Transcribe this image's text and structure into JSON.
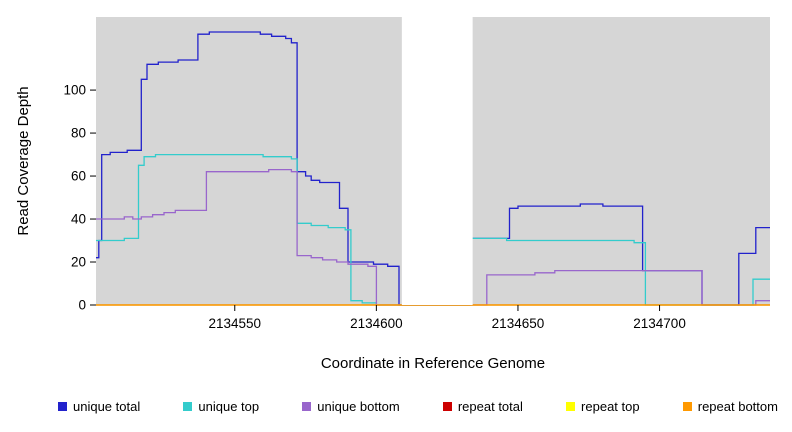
{
  "chart_data": {
    "type": "line",
    "step": "after",
    "title": "",
    "xlabel": "Coordinate in Reference Genome",
    "ylabel": "Read Coverage Depth",
    "xlim": [
      2134501,
      2134739
    ],
    "ylim": [
      0,
      134
    ],
    "xticks": [
      2134550,
      2134600,
      2134650,
      2134700
    ],
    "yticks": [
      0,
      20,
      40,
      60,
      80,
      100
    ],
    "grid": false,
    "legend_position": "bottom",
    "plot_background": "#d6d6d6",
    "gap_region": {
      "x0": 2134609,
      "x1": 2134634,
      "color": "#ffffff"
    },
    "series": [
      {
        "name": "unique total",
        "color": "#2222cc",
        "points": [
          [
            2134501,
            22
          ],
          [
            2134502,
            30
          ],
          [
            2134503,
            70
          ],
          [
            2134506,
            71
          ],
          [
            2134512,
            72
          ],
          [
            2134517,
            105
          ],
          [
            2134519,
            112
          ],
          [
            2134523,
            113
          ],
          [
            2134530,
            114
          ],
          [
            2134537,
            126
          ],
          [
            2134541,
            127
          ],
          [
            2134559,
            126
          ],
          [
            2134563,
            125
          ],
          [
            2134568,
            124
          ],
          [
            2134570,
            122
          ],
          [
            2134572,
            62
          ],
          [
            2134575,
            60
          ],
          [
            2134577,
            58
          ],
          [
            2134580,
            57
          ],
          [
            2134587,
            45
          ],
          [
            2134590,
            20
          ],
          [
            2134599,
            19
          ],
          [
            2134604,
            18
          ],
          [
            2134608,
            0
          ],
          [
            2134633,
            31
          ],
          [
            2134647,
            45
          ],
          [
            2134650,
            46
          ],
          [
            2134672,
            47
          ],
          [
            2134680,
            46
          ],
          [
            2134694,
            16
          ],
          [
            2134715,
            0
          ],
          [
            2134728,
            24
          ],
          [
            2134734,
            36
          ],
          [
            2134739,
            36
          ]
        ]
      },
      {
        "name": "unique top",
        "color": "#33cccc",
        "points": [
          [
            2134501,
            30
          ],
          [
            2134511,
            31
          ],
          [
            2134516,
            65
          ],
          [
            2134518,
            69
          ],
          [
            2134522,
            70
          ],
          [
            2134556,
            70
          ],
          [
            2134560,
            69
          ],
          [
            2134570,
            68
          ],
          [
            2134572,
            38
          ],
          [
            2134577,
            37
          ],
          [
            2134583,
            36
          ],
          [
            2134589,
            35
          ],
          [
            2134591,
            2
          ],
          [
            2134595,
            1
          ],
          [
            2134600,
            0
          ],
          [
            2134633,
            31
          ],
          [
            2134642,
            31
          ],
          [
            2134646,
            30
          ],
          [
            2134688,
            30
          ],
          [
            2134691,
            29
          ],
          [
            2134695,
            0
          ],
          [
            2134731,
            0
          ],
          [
            2134733,
            12
          ],
          [
            2134739,
            12
          ]
        ]
      },
      {
        "name": "unique bottom",
        "color": "#9966cc",
        "points": [
          [
            2134501,
            40
          ],
          [
            2134507,
            40
          ],
          [
            2134511,
            41
          ],
          [
            2134514,
            40
          ],
          [
            2134517,
            41
          ],
          [
            2134521,
            42
          ],
          [
            2134525,
            43
          ],
          [
            2134529,
            44
          ],
          [
            2134536,
            44
          ],
          [
            2134540,
            62
          ],
          [
            2134548,
            62
          ],
          [
            2134562,
            63
          ],
          [
            2134570,
            62
          ],
          [
            2134572,
            23
          ],
          [
            2134577,
            22
          ],
          [
            2134581,
            21
          ],
          [
            2134586,
            20
          ],
          [
            2134590,
            19
          ],
          [
            2134597,
            18
          ],
          [
            2134600,
            0
          ],
          [
            2134633,
            0
          ],
          [
            2134639,
            14
          ],
          [
            2134652,
            14
          ],
          [
            2134656,
            15
          ],
          [
            2134663,
            16
          ],
          [
            2134694,
            16
          ],
          [
            2134715,
            0
          ],
          [
            2134734,
            2
          ],
          [
            2134739,
            2
          ]
        ]
      },
      {
        "name": "repeat total",
        "color": "#cc0000",
        "points": [
          [
            2134501,
            0
          ],
          [
            2134739,
            0
          ]
        ]
      },
      {
        "name": "repeat top",
        "color": "#ffff00",
        "points": [
          [
            2134501,
            0
          ],
          [
            2134739,
            0
          ]
        ]
      },
      {
        "name": "repeat bottom",
        "color": "#ff9900",
        "points": [
          [
            2134501,
            0
          ],
          [
            2134739,
            0
          ]
        ]
      }
    ]
  }
}
